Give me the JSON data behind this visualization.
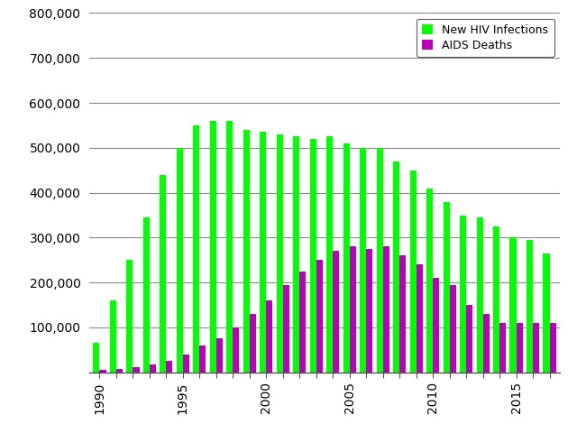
{
  "years": [
    1990,
    1991,
    1992,
    1993,
    1994,
    1995,
    1996,
    1997,
    1998,
    1999,
    2000,
    2001,
    2002,
    2003,
    2004,
    2005,
    2006,
    2007,
    2008,
    2009,
    2010,
    2011,
    2012,
    2013,
    2014,
    2015,
    2016,
    2017
  ],
  "hiv_infections": [
    65000,
    160000,
    250000,
    345000,
    440000,
    500000,
    550000,
    560000,
    560000,
    540000,
    535000,
    530000,
    525000,
    520000,
    525000,
    510000,
    500000,
    500000,
    470000,
    450000,
    410000,
    380000,
    350000,
    345000,
    325000,
    300000,
    295000,
    265000
  ],
  "aids_deaths": [
    5000,
    8000,
    12000,
    18000,
    25000,
    40000,
    60000,
    75000,
    100000,
    130000,
    160000,
    195000,
    225000,
    250000,
    270000,
    280000,
    275000,
    280000,
    260000,
    240000,
    210000,
    195000,
    150000,
    130000,
    110000,
    110000,
    110000,
    110000
  ],
  "hiv_color": "#00ff00",
  "aids_color": "#bb00bb",
  "ylim": [
    0,
    800000
  ],
  "yticks": [
    100000,
    200000,
    300000,
    400000,
    500000,
    600000,
    700000,
    800000
  ],
  "legend_labels": [
    "New HIV Infections",
    "AIDS Deaths"
  ],
  "background_color": "#ffffff",
  "grid_color": "#888888",
  "bar_width": 0.38,
  "bar_gap": 0.02
}
